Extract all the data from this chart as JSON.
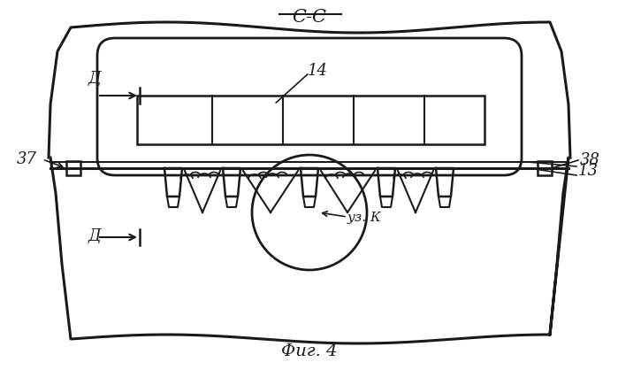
{
  "title": "С-С",
  "caption": "Фиг. 4",
  "label_D_top": "Д",
  "label_D_bot": "Д",
  "label_14": "14",
  "label_13": "13",
  "label_37": "37",
  "label_38": "38",
  "label_uzk": "уз. К",
  "bg_color": "#ffffff",
  "line_color": "#1a1a1a"
}
